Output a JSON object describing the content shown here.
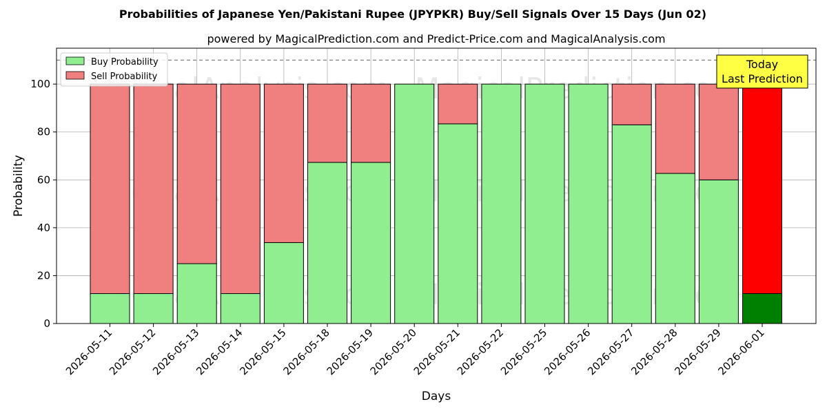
{
  "chart_data": {
    "type": "bar",
    "stacked": true,
    "title": "Probabilities of Japanese Yen/Pakistani Rupee (JPYPKR) Buy/Sell Signals Over 15 Days (Jun 02)",
    "subtitle": "powered by MagicalPrediction.com and Predict-Price.com and MagicalAnalysis.com",
    "xlabel": "Days",
    "ylabel": "Probability",
    "ylim": [
      0,
      115
    ],
    "yticks": [
      0,
      20,
      40,
      60,
      80,
      100
    ],
    "reference_line": 110,
    "grid": true,
    "legend_position": "top-left",
    "categories": [
      "2026-05-11",
      "2026-05-12",
      "2026-05-13",
      "2026-05-14",
      "2026-05-15",
      "2026-05-18",
      "2026-05-19",
      "2026-05-20",
      "2026-05-21",
      "2026-05-22",
      "2026-05-25",
      "2026-05-26",
      "2026-05-27",
      "2026-05-28",
      "2026-05-29",
      "2026-06-01"
    ],
    "series": [
      {
        "name": "Buy Probability",
        "color": "#90ee90",
        "values": [
          12.5,
          12.5,
          25,
          12.5,
          33.8,
          67.3,
          67.3,
          100,
          83.4,
          100,
          100,
          100,
          83,
          62.7,
          60,
          12.5
        ]
      },
      {
        "name": "Sell Probability",
        "color": "#f08080",
        "values": [
          87.5,
          87.5,
          75,
          87.5,
          66.2,
          32.7,
          32.7,
          0,
          16.6,
          0,
          0,
          0,
          17,
          37.3,
          40,
          87.5
        ]
      }
    ],
    "highlight": {
      "index": 15,
      "buy_color": "#008000",
      "sell_color": "#ff0000"
    },
    "annotation": {
      "lines": [
        "Today",
        "Last Prediction"
      ],
      "color": "#ffff44"
    },
    "watermarks": [
      "MagicalAnalysis.com",
      "MagicalPrediction.com"
    ]
  }
}
